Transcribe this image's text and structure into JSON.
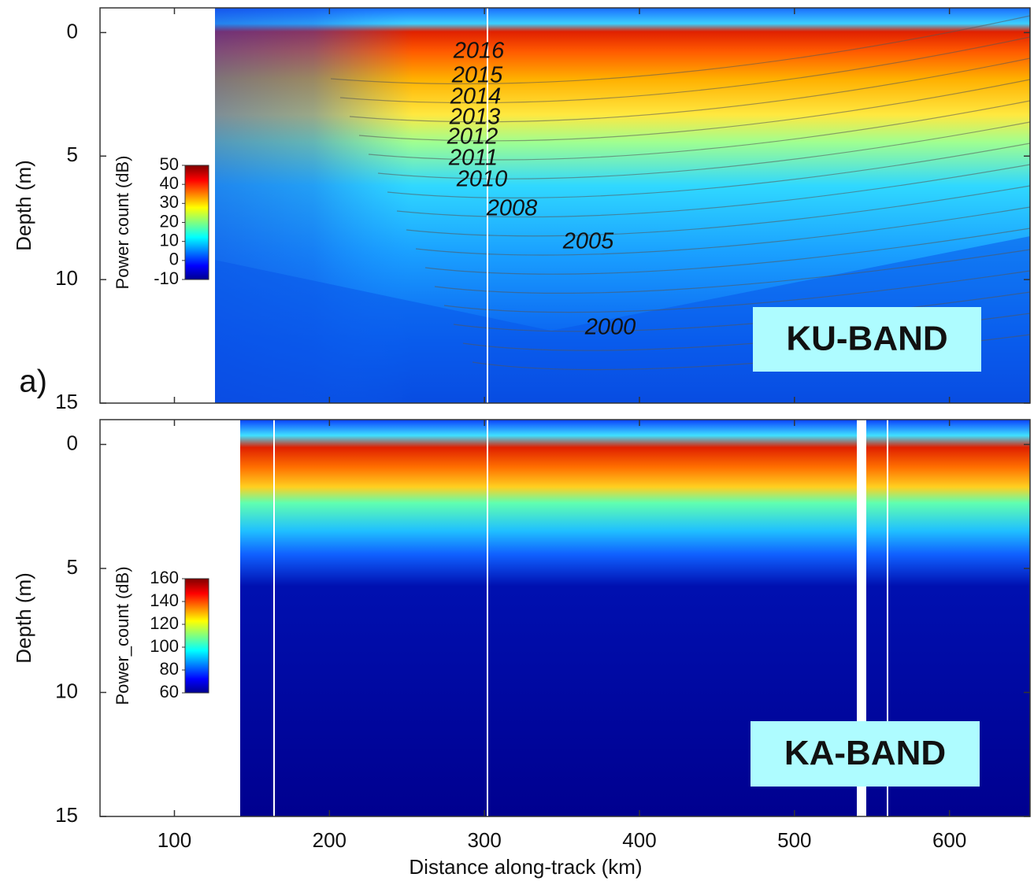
{
  "figure_label": "a)",
  "chart_data": [
    {
      "type": "heatmap",
      "ylabel": "Depth (m)",
      "xlim": [
        52,
        652
      ],
      "xticks": [
        100,
        200,
        300,
        400,
        500,
        600
      ],
      "ylim": [
        -1,
        15
      ],
      "yticks": [
        0,
        5,
        10,
        15
      ],
      "y_inverted": true,
      "band_label": "KU-BAND",
      "annotations": [
        "2016",
        "2015",
        "2014",
        "2013",
        "2012",
        "2011",
        "2010",
        "2008",
        "2005",
        "2000"
      ],
      "colorbar": {
        "label": "Power count (dB)",
        "clim": [
          -10,
          50
        ],
        "ticks": [
          -10,
          0,
          10,
          20,
          30,
          40,
          50
        ],
        "colormap": "jet"
      }
    },
    {
      "type": "heatmap",
      "ylabel": "Depth (m)",
      "xlabel": "Distance along-track (km)",
      "xlim": [
        52,
        652
      ],
      "xticks": [
        100,
        200,
        300,
        400,
        500,
        600
      ],
      "ylim": [
        -1,
        15
      ],
      "yticks": [
        0,
        5,
        10,
        15
      ],
      "y_inverted": true,
      "band_label": "KA-BAND",
      "colorbar": {
        "label": "Power_count (dB)",
        "clim": [
          60,
          160
        ],
        "ticks": [
          60,
          80,
          100,
          120,
          140,
          160
        ],
        "colormap": "jet"
      }
    }
  ]
}
